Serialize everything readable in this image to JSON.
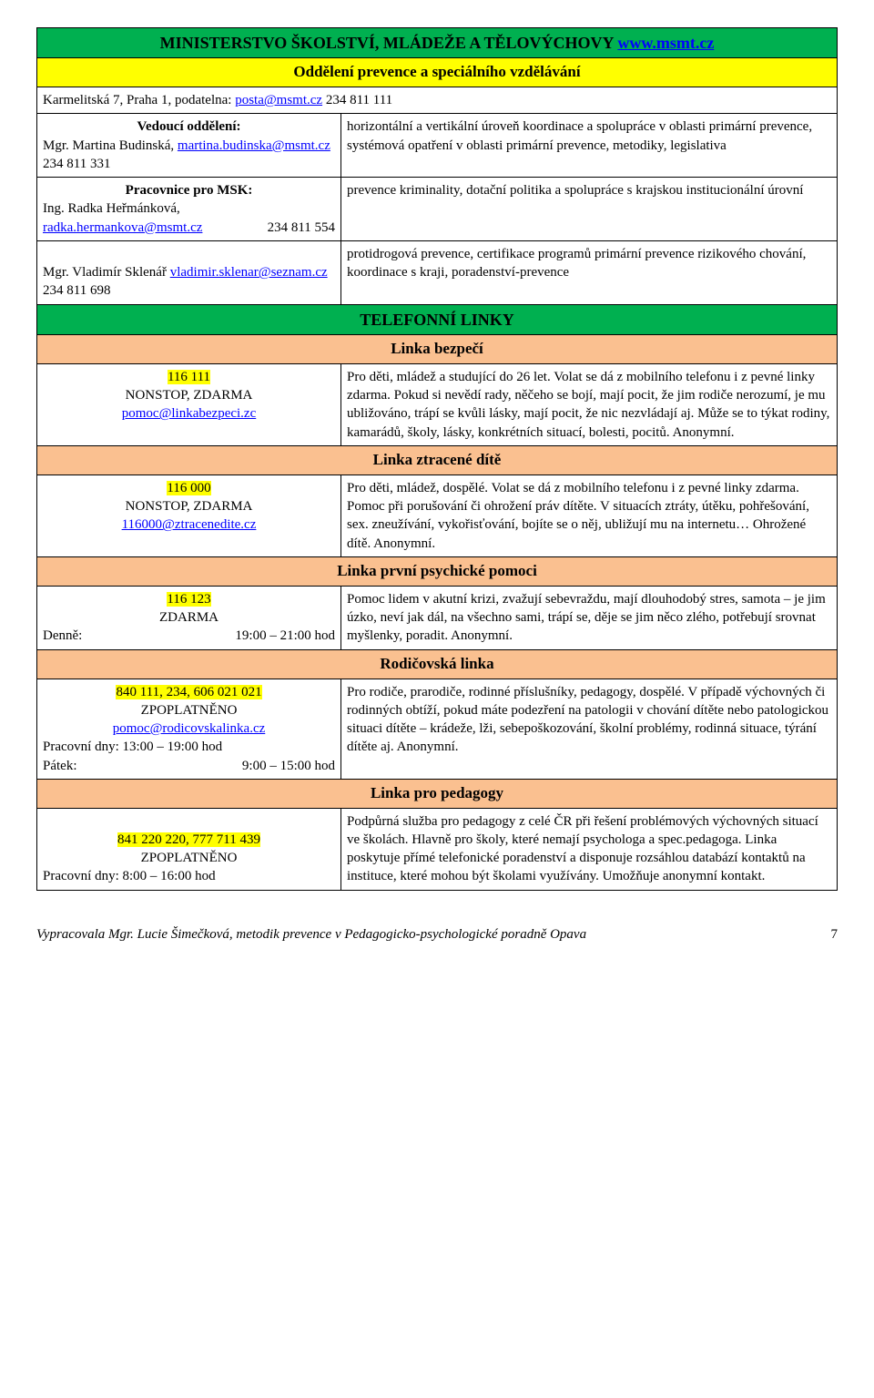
{
  "title_line": "MINISTERSTVO ŠKOLSTVÍ, MLÁDEŽE A TĚLOVÝCHOVY ",
  "title_link": "www.msmt.cz",
  "subtitle": "Oddělení prevence a speciálního vzdělávání",
  "address_pre": "Karmelitská 7, Praha 1,  podatelna: ",
  "address_email": "posta@msmt.cz",
  "address_phone": "  234 811 111",
  "c1": {
    "left_head": "Vedoucí oddělení:",
    "left_name": "Mgr. Martina Budinská, ",
    "left_email": "martina.budinska@msmt.cz",
    "left_phone": "  234 811 331",
    "right": "horizontální a vertikální úroveň koordinace a spolupráce v oblasti primární prevence, systémová opatření v oblasti primární prevence, metodiky, legislativa"
  },
  "c2": {
    "left_head": "Pracovnice pro MSK:",
    "left_name": "Ing. Radka Heřmánková,",
    "left_email": " radka.hermankova@msmt.cz",
    "left_phone": "234 811 554",
    "right": "prevence kriminality, dotační politika a spolupráce s krajskou institucionální úrovní"
  },
  "c3": {
    "left_name": "Mgr. Vladimír Sklenář ",
    "left_email": "vladimir.sklenar@seznam.cz",
    "left_phone": "  234 811 698",
    "right": "protidrogová prevence, certifikace programů primární prevence rizikového chování, koordinace s kraji, poradenství-prevence"
  },
  "sec_phones": "TELEFONNÍ LINKY",
  "s1": {
    "header": "Linka bezpečí",
    "num": "116 111",
    "note": "NONSTOP, ZDARMA",
    "email": "pomoc@linkabezpeci.zc",
    "desc": "Pro děti, mládež a studující do 26 let. Volat se dá z mobilního telefonu i z pevné linky zdarma. Pokud si nevědí rady, něčeho se bojí, mají pocit, že jim rodiče nerozumí, je mu ubližováno, trápí se kvůli lásky, mají pocit, že nic nezvládají aj. Může se to týkat rodiny, kamarádů, školy, lásky, konkrétních situací, bolesti, pocitů. Anonymní."
  },
  "s2": {
    "header": "Linka ztracené dítě",
    "num": "116 000",
    "note": "NONSTOP, ZDARMA",
    "email": "116000@ztracenedite.cz",
    "desc": "Pro děti, mládež, dospělé. Volat se dá z mobilního telefonu i z pevné linky zdarma. Pomoc při porušování či ohrožení práv dítěte. V situacích ztráty, útěku, pohřešování, sex. zneužívání, vykořisťování, bojíte se o něj, ubližují mu na internetu… Ohrožené dítě. Anonymní."
  },
  "s3": {
    "header": "Linka první psychické pomoci",
    "num": "116 123",
    "note": "ZDARMA",
    "hours_label": "Denně:",
    "hours_val": "19:00 – 21:00 hod",
    "desc": "Pomoc lidem v akutní krizi, zvažují sebevraždu, mají dlouhodobý stres, samota – je jim úzko, neví jak dál, na všechno sami, trápí se, děje se jim něco zlého, potřebují srovnat myšlenky, poradit. Anonymní."
  },
  "s4": {
    "header": "Rodičovská linka",
    "num": "840 111, 234, 606 021 021",
    "note": "ZPOPLATNĚNO",
    "email": "pomoc@rodicovskalinka.cz",
    "hours1_label": "Pracovní dny: 13:00 – 19:00 hod",
    "hours2_label_a": "Pátek:",
    "hours2_label_b": "9:00 – 15:00 hod",
    "desc": "Pro rodiče, prarodiče, rodinné příslušníky, pedagogy, dospělé. V případě výchovných či rodinných obtíží, pokud máte podezření na patologii v chování dítěte nebo patologickou situaci dítěte – krádeže, lži, sebepoškozování, školní problémy, rodinná situace, týrání dítěte aj. Anonymní."
  },
  "s5": {
    "header": "Linka pro pedagogy",
    "num": "841 220 220, 777 711 439",
    "note": "ZPOPLATNĚNO",
    "hours": "Pracovní dny: 8:00 – 16:00 hod",
    "desc": "Podpůrná služba pro pedagogy z celé ČR při řešení problémových výchovných situací ve školách. Hlavně pro školy, které nemají psychologa a spec.pedagoga. Linka poskytuje přímé telefonické poradenství a disponuje rozsáhlou databází kontaktů na instituce, které mohou být školami využívány. Umožňuje anonymní kontakt."
  },
  "footer_text": "Vypracovala Mgr. Lucie Šimečková, metodik prevence v Pedagogicko-psychologické poradně Opava",
  "footer_page": "7"
}
